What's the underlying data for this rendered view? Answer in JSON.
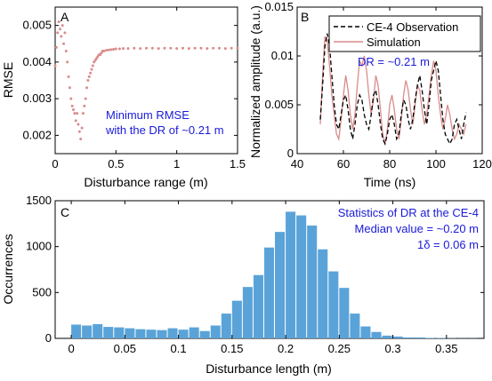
{
  "colors": {
    "scatter": "#d98c8c",
    "observation": "#000000",
    "simulation": "#d98c8c",
    "histogram": "#5aa3d8",
    "annotation": "#1a1adb"
  },
  "chart_data": [
    {
      "panel": "A",
      "type": "scatter",
      "title": "",
      "xlabel": "Disturbance range (m)",
      "ylabel": "RMSE",
      "xlim": [
        0,
        1.5
      ],
      "ylim": [
        0.0015,
        0.0055
      ],
      "xticks": [
        {
          "v": 0,
          "label": "0"
        },
        {
          "v": 0.5,
          "label": "0.5"
        },
        {
          "v": 1,
          "label": "1"
        },
        {
          "v": 1.5,
          "label": "1.5"
        }
      ],
      "yticks": [
        {
          "v": 0.002,
          "label": "0.002"
        },
        {
          "v": 0.003,
          "label": "0.003"
        },
        {
          "v": 0.004,
          "label": "0.004"
        },
        {
          "v": 0.005,
          "label": "0.005"
        }
      ],
      "annotation": [
        "Minimum RMSE",
        "with the DR of ~0.21 m"
      ],
      "series": [
        {
          "x": [
            0.0,
            0.01,
            0.02,
            0.03,
            0.04,
            0.05,
            0.06,
            0.07,
            0.08,
            0.09,
            0.1,
            0.11,
            0.12,
            0.13,
            0.14,
            0.15,
            0.16,
            0.17,
            0.18,
            0.19,
            0.2,
            0.21,
            0.22,
            0.23,
            0.24,
            0.25,
            0.26,
            0.27,
            0.28,
            0.29,
            0.3,
            0.31,
            0.32,
            0.33,
            0.34,
            0.35,
            0.36,
            0.37,
            0.38,
            0.39,
            0.4,
            0.42,
            0.44,
            0.46,
            0.48,
            0.5,
            0.53,
            0.56,
            0.6,
            0.65,
            0.7,
            0.75,
            0.8,
            0.85,
            0.9,
            0.95,
            1.0,
            1.05,
            1.1,
            1.15,
            1.2,
            1.25,
            1.3,
            1.35,
            1.4,
            1.45,
            1.5
          ],
          "y": [
            0.0039,
            0.0044,
            0.0048,
            0.0051,
            0.0049,
            0.0047,
            0.005,
            0.0045,
            0.0048,
            0.0043,
            0.004,
            0.0036,
            0.0033,
            0.003,
            0.0028,
            0.0027,
            0.0026,
            0.0024,
            0.0026,
            0.0023,
            0.0021,
            0.0019,
            0.0022,
            0.0026,
            0.0028,
            0.003,
            0.0033,
            0.0035,
            0.0036,
            0.0037,
            0.0038,
            0.0039,
            0.004,
            0.00405,
            0.0041,
            0.00415,
            0.0042,
            0.0042,
            0.00425,
            0.0043,
            0.0043,
            0.00432,
            0.00433,
            0.00434,
            0.00435,
            0.00436,
            0.00436,
            0.00437,
            0.00437,
            0.00438,
            0.00437,
            0.00438,
            0.00438,
            0.00437,
            0.00438,
            0.00438,
            0.00437,
            0.00438,
            0.00437,
            0.00438,
            0.00438,
            0.00437,
            0.00438,
            0.00438,
            0.00437,
            0.00438,
            0.00438
          ]
        }
      ]
    },
    {
      "panel": "B",
      "type": "line",
      "title": "",
      "xlabel": "Time (ns)",
      "ylabel": "Normalized amplitude (a.u.)",
      "xlim": [
        40,
        120
      ],
      "ylim": [
        0,
        0.015
      ],
      "xticks": [
        {
          "v": 40,
          "label": "40"
        },
        {
          "v": 60,
          "label": "60"
        },
        {
          "v": 80,
          "label": "80"
        },
        {
          "v": 100,
          "label": "100"
        },
        {
          "v": 120,
          "label": "120"
        }
      ],
      "yticks": [
        {
          "v": 0,
          "label": "0"
        },
        {
          "v": 0.005,
          "label": "0.005"
        },
        {
          "v": 0.01,
          "label": "0.01"
        },
        {
          "v": 0.015,
          "label": "0.015"
        }
      ],
      "legend_position": "top-right",
      "annotation": "DR = ~0.21 m",
      "series": [
        {
          "name": "CE-4 Observation",
          "style": "dashed",
          "x": [
            50,
            51,
            52,
            53,
            54,
            55,
            56,
            57,
            58,
            59,
            60,
            61,
            62,
            63,
            64,
            65,
            66,
            67,
            68,
            69,
            70,
            71,
            72,
            73,
            74,
            75,
            76,
            77,
            78,
            79,
            80,
            81,
            82,
            83,
            84,
            85,
            86,
            87,
            88,
            89,
            90,
            91,
            92,
            93,
            94,
            95,
            96,
            97,
            98,
            99,
            100,
            101,
            102,
            103,
            104,
            105,
            106,
            107,
            108,
            109,
            110,
            111,
            112,
            113
          ],
          "y": [
            0.0035,
            0.007,
            0.011,
            0.0123,
            0.011,
            0.008,
            0.005,
            0.003,
            0.0025,
            0.004,
            0.0055,
            0.006,
            0.0045,
            0.0025,
            0.0015,
            0.003,
            0.005,
            0.006,
            0.0055,
            0.004,
            0.003,
            0.0025,
            0.004,
            0.006,
            0.0065,
            0.005,
            0.003,
            0.0015,
            0.001,
            0.002,
            0.0035,
            0.004,
            0.003,
            0.0015,
            0.002,
            0.004,
            0.0055,
            0.005,
            0.0035,
            0.0025,
            0.0035,
            0.0055,
            0.007,
            0.008,
            0.0065,
            0.0045,
            0.003,
            0.005,
            0.0075,
            0.0085,
            0.0095,
            0.0085,
            0.006,
            0.0035,
            0.002,
            0.0015,
            0.001,
            0.0015,
            0.003,
            0.0035,
            0.0025,
            0.0015,
            0.003,
            0.0042
          ]
        },
        {
          "name": "Simulation",
          "style": "solid",
          "x": [
            50,
            51,
            52,
            53,
            54,
            55,
            56,
            57,
            58,
            59,
            60,
            61,
            62,
            63,
            64,
            65,
            66,
            67,
            68,
            69,
            70,
            71,
            72,
            73,
            74,
            75,
            76,
            77,
            78,
            79,
            80,
            81,
            82,
            83,
            84,
            85,
            86,
            87,
            88,
            89,
            90,
            91,
            92,
            93,
            94,
            95,
            96,
            97,
            98,
            99,
            100,
            101,
            102,
            103,
            104,
            105,
            106,
            107,
            108,
            109,
            110,
            111,
            112,
            113
          ],
          "y": [
            0.003,
            0.008,
            0.012,
            0.0115,
            0.009,
            0.006,
            0.004,
            0.002,
            0.0015,
            0.0035,
            0.006,
            0.008,
            0.0065,
            0.004,
            0.0025,
            0.004,
            0.007,
            0.0095,
            0.009,
            0.01,
            0.0085,
            0.006,
            0.004,
            0.0055,
            0.008,
            0.007,
            0.0045,
            0.002,
            0.001,
            0.0025,
            0.005,
            0.006,
            0.0045,
            0.0025,
            0.0015,
            0.0035,
            0.006,
            0.0075,
            0.0065,
            0.0045,
            0.003,
            0.005,
            0.007,
            0.0065,
            0.0045,
            0.003,
            0.004,
            0.006,
            0.008,
            0.0095,
            0.0085,
            0.006,
            0.004,
            0.0025,
            0.0035,
            0.005,
            0.004,
            0.0025,
            0.0015,
            0.002,
            0.003,
            0.0025,
            0.002,
            0.003
          ]
        }
      ]
    },
    {
      "panel": "C",
      "type": "bar",
      "title": "",
      "xlabel": "Disturbance length (m)",
      "ylabel": "Occurrences",
      "xlim": [
        -0.015,
        0.385
      ],
      "ylim": [
        0,
        1500
      ],
      "xticks": [
        {
          "v": 0,
          "label": "0"
        },
        {
          "v": 0.05,
          "label": "0.05"
        },
        {
          "v": 0.1,
          "label": "0.1"
        },
        {
          "v": 0.15,
          "label": "0.15"
        },
        {
          "v": 0.2,
          "label": "0.2"
        },
        {
          "v": 0.25,
          "label": "0.25"
        },
        {
          "v": 0.3,
          "label": "0.3"
        },
        {
          "v": 0.35,
          "label": "0.35"
        }
      ],
      "yticks": [
        {
          "v": 0,
          "label": "0"
        },
        {
          "v": 500,
          "label": "500"
        },
        {
          "v": 1000,
          "label": "1000"
        },
        {
          "v": 1500,
          "label": "1500"
        }
      ],
      "annotation": [
        "Statistics of DR at the CE-4",
        "Median value = ~0.20 m",
        "1δ = 0.06 m"
      ],
      "bin_width": 0.01,
      "bin_starts": [
        0.0,
        0.01,
        0.02,
        0.03,
        0.04,
        0.05,
        0.06,
        0.07,
        0.08,
        0.09,
        0.1,
        0.11,
        0.12,
        0.13,
        0.14,
        0.15,
        0.16,
        0.17,
        0.18,
        0.19,
        0.2,
        0.21,
        0.22,
        0.23,
        0.24,
        0.25,
        0.26,
        0.27,
        0.28,
        0.29,
        0.3,
        0.31,
        0.32,
        0.33,
        0.34,
        0.35,
        0.36,
        0.37
      ],
      "values": [
        150,
        140,
        155,
        125,
        120,
        110,
        100,
        95,
        90,
        110,
        95,
        120,
        80,
        140,
        270,
        410,
        560,
        690,
        990,
        1160,
        1380,
        1340,
        1230,
        970,
        730,
        550,
        270,
        130,
        70,
        30,
        20,
        10,
        10,
        5,
        5,
        3,
        2,
        2
      ]
    }
  ]
}
